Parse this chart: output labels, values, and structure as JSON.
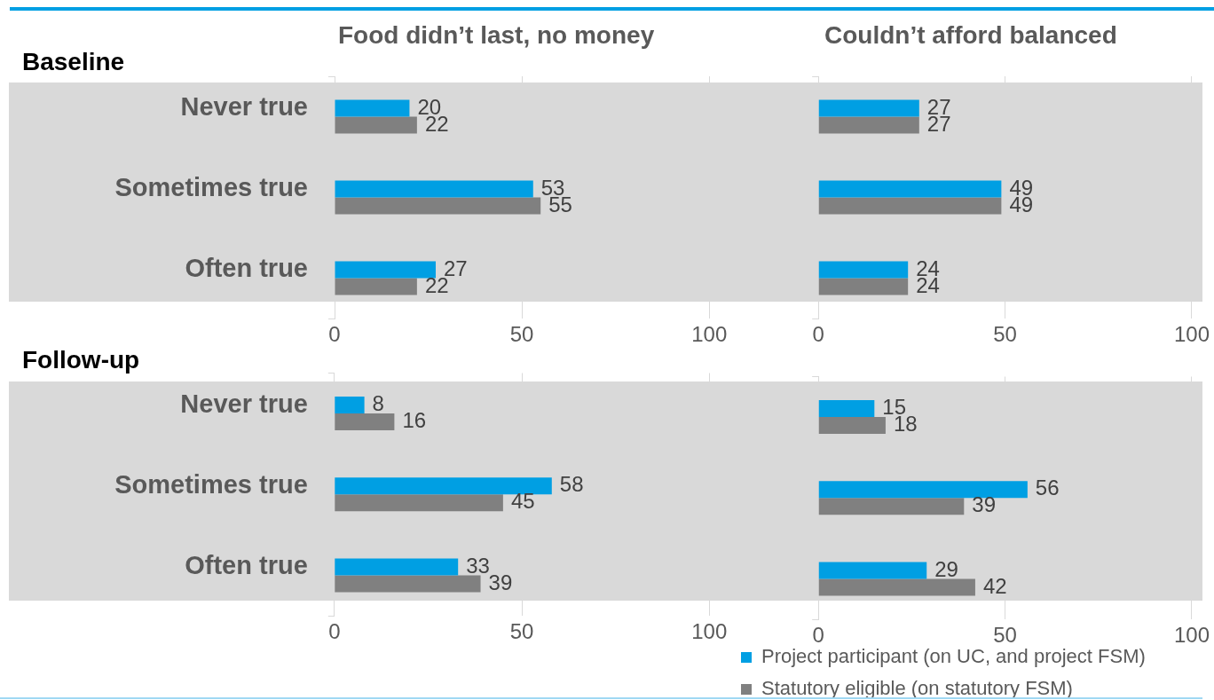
{
  "chart_data": [
    {
      "type": "bar",
      "orientation": "horizontal",
      "title": "Food didn’t last, no money",
      "subtitle": "Baseline",
      "categories": [
        "Never true",
        "Sometimes true",
        "Often true"
      ],
      "series": [
        {
          "color": "#009fe3",
          "values": [
            20,
            53,
            27
          ]
        },
        {
          "color": "#808080",
          "values": [
            22,
            55,
            22
          ]
        }
      ],
      "xlim": [
        0,
        100
      ],
      "xticks": [
        0,
        50,
        100
      ],
      "grid": "x",
      "data_labels": true
    },
    {
      "type": "bar",
      "orientation": "horizontal",
      "title": "Couldn’t afford balanced",
      "categories": [
        null,
        null,
        null
      ],
      "series": [
        {
          "color": "#009fe3",
          "values": [
            27,
            49,
            24
          ]
        },
        {
          "color": "#808080",
          "values": [
            27,
            49,
            24
          ]
        }
      ],
      "xlim": [
        0,
        100
      ],
      "xticks": [
        0,
        50,
        100
      ],
      "grid": "x",
      "data_labels": true
    },
    {
      "type": "bar",
      "orientation": "horizontal",
      "subtitle": "Follow-up",
      "categories": [
        "Never true",
        "Sometimes true",
        "Often true"
      ],
      "series": [
        {
          "color": "#009fe3",
          "values": [
            8,
            58,
            33
          ]
        },
        {
          "color": "#808080",
          "values": [
            16,
            45,
            39
          ]
        }
      ],
      "xlim": [
        0,
        100
      ],
      "xticks": [
        0,
        50,
        100
      ],
      "grid": "x",
      "data_labels": true
    },
    {
      "type": "bar",
      "orientation": "horizontal",
      "categories": [
        null,
        null,
        null
      ],
      "series": [
        {
          "name": "Project participant (on UC, and project FSM)",
          "color": "#009fe3",
          "values": [
            15,
            56,
            29
          ]
        },
        {
          "name": "Statutory eligible (on statutory FSM)",
          "color": "#808080",
          "values": [
            18,
            39,
            42
          ]
        }
      ],
      "xlim": [
        0,
        100
      ],
      "xticks": [
        0,
        50,
        100
      ],
      "grid": "x",
      "data_labels": true,
      "legend": "bottom left"
    }
  ]
}
